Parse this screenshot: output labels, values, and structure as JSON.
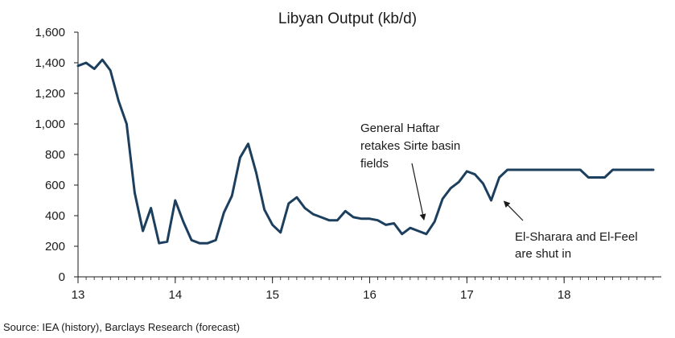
{
  "chart_data": {
    "type": "line",
    "title": "Libyan Output (kb/d)",
    "xlabel": "",
    "ylabel": "",
    "xlim": [
      13,
      19
    ],
    "ylim": [
      0,
      1600
    ],
    "x_ticks": [
      13,
      14,
      15,
      16,
      17,
      18
    ],
    "x_tick_labels": [
      "13",
      "14",
      "15",
      "16",
      "17",
      "18"
    ],
    "y_ticks": [
      0,
      200,
      400,
      600,
      800,
      1000,
      1200,
      1400,
      1600
    ],
    "y_tick_labels": [
      "0",
      "200",
      "400",
      "600",
      "800",
      "1,000",
      "1,200",
      "1,400",
      "1,600"
    ],
    "grid": false,
    "line_color": "#1d3f5e",
    "series": [
      {
        "x": [
          13.0,
          13.083,
          13.167,
          13.25,
          13.333,
          13.417,
          13.5,
          13.583,
          13.667,
          13.75,
          13.833,
          13.917,
          14.0,
          14.083,
          14.167,
          14.25,
          14.333,
          14.417,
          14.5,
          14.583,
          14.667,
          14.75,
          14.833,
          14.917,
          15.0,
          15.083,
          15.167,
          15.25,
          15.333,
          15.417,
          15.5,
          15.583,
          15.667,
          15.75,
          15.833,
          15.917,
          16.0,
          16.083,
          16.167,
          16.25,
          16.333,
          16.417,
          16.5,
          16.583,
          16.667,
          16.75,
          16.833,
          16.917,
          17.0,
          17.083,
          17.167,
          17.25,
          17.333,
          17.417,
          17.5,
          17.583,
          17.667,
          17.75,
          17.833,
          17.917,
          18.0,
          18.083,
          18.167,
          18.25,
          18.333,
          18.417,
          18.5,
          18.583,
          18.667,
          18.75,
          18.833,
          18.917
        ],
        "y": [
          1380,
          1400,
          1360,
          1420,
          1350,
          1150,
          1000,
          550,
          300,
          450,
          220,
          230,
          500,
          360,
          240,
          220,
          220,
          240,
          420,
          530,
          780,
          870,
          680,
          440,
          340,
          290,
          480,
          520,
          450,
          410,
          390,
          370,
          370,
          430,
          390,
          380,
          380,
          370,
          340,
          350,
          280,
          320,
          300,
          280,
          360,
          510,
          580,
          620,
          690,
          670,
          610,
          500,
          650,
          700,
          700,
          700,
          700,
          700,
          700,
          700,
          700,
          700,
          700,
          650,
          650,
          650,
          700,
          700,
          700,
          700,
          700,
          700
        ]
      }
    ],
    "annotations": [
      {
        "lines": [
          "General Haftar",
          "retakes Sirte basin",
          "fields"
        ],
        "arrow_to": [
          16.55,
          300
        ]
      },
      {
        "lines": [
          "El-Sharara and El-Feel",
          "are shut in"
        ],
        "arrow_to": [
          17.3,
          520
        ]
      }
    ],
    "source": "Source: IEA (history), Barclays Research (forecast)"
  }
}
